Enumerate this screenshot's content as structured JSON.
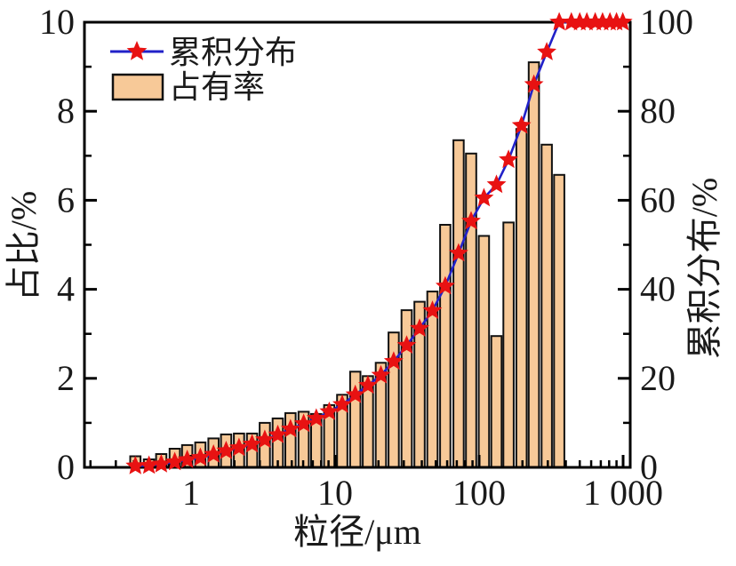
{
  "figure": {
    "background": "#ffffff",
    "legend": {
      "items": [
        {
          "label": "累积分布",
          "type": "line-star"
        },
        {
          "label": "占有率",
          "type": "bar"
        }
      ]
    },
    "axes": {
      "x": {
        "label": "粒径/μm",
        "scale": "log",
        "min": 0.18,
        "max": 1120,
        "major_ticks": [
          1,
          10,
          100,
          1000
        ],
        "tick_labels": [
          "1",
          "10",
          "100",
          "1 000"
        ]
      },
      "y_left": {
        "label": "占比/%",
        "min": 0,
        "max": 10,
        "major_ticks": [
          0,
          2,
          4,
          6,
          8,
          10
        ],
        "tick_labels": [
          "0",
          "2",
          "4",
          "6",
          "8",
          "10"
        ],
        "minor_ticks": [
          1,
          3,
          5,
          7,
          9
        ]
      },
      "y_right": {
        "label": "累积分布/%",
        "min": 0,
        "max": 100,
        "major_ticks": [
          0,
          20,
          40,
          60,
          80,
          100
        ],
        "tick_labels": [
          "0",
          "20",
          "40",
          "60",
          "80",
          "100"
        ],
        "minor_ticks": [
          10,
          30,
          50,
          70,
          90
        ]
      }
    },
    "colors": {
      "bar_fill": "#F7C998",
      "bar_stroke": "#111111",
      "line": "#2121C8",
      "star": "#E81212",
      "axis": "#000000"
    }
  },
  "chart_data": {
    "type": "bar",
    "title": "",
    "xlabel": "粒径/μm",
    "ylabel_left": "占比/%",
    "ylabel_right": "累积分布/%",
    "x_scale": "log",
    "x_range_um": [
      0.18,
      1120
    ],
    "ylim_left": [
      0,
      10
    ],
    "ylim_right": [
      0,
      100
    ],
    "grid": false,
    "legend_position": "top-left-inside",
    "series": [
      {
        "name": "占有率",
        "type": "bar",
        "axis": "left",
        "x_um": [
          0.41,
          0.51,
          0.62,
          0.77,
          0.94,
          1.16,
          1.43,
          1.75,
          2.15,
          2.65,
          3.25,
          4.0,
          4.9,
          6.05,
          7.4,
          9.1,
          11.2,
          13.8,
          16.9,
          20.8,
          25.5,
          31.4,
          38.6,
          47.4,
          58.2,
          72,
          88,
          108,
          132,
          160,
          197,
          240,
          295,
          360
        ],
        "values": [
          0.25,
          0.18,
          0.3,
          0.42,
          0.5,
          0.56,
          0.65,
          0.74,
          0.76,
          0.76,
          1.0,
          1.1,
          1.22,
          1.25,
          1.2,
          1.4,
          1.63,
          2.15,
          2.05,
          2.35,
          3.03,
          3.53,
          3.72,
          3.95,
          5.45,
          7.35,
          7.05,
          5.2,
          2.95,
          5.5,
          7.6,
          9.1,
          7.25,
          6.57
        ]
      },
      {
        "name": "累积分布",
        "type": "line",
        "marker": "star",
        "axis": "right",
        "x_um": [
          0.41,
          0.51,
          0.62,
          0.77,
          0.94,
          1.16,
          1.43,
          1.75,
          2.15,
          2.65,
          3.25,
          4.0,
          4.9,
          6.05,
          7.4,
          9.1,
          11.2,
          13.8,
          16.9,
          20.8,
          25.5,
          31.4,
          38.6,
          47.4,
          58.2,
          72,
          88,
          108,
          132,
          160,
          197,
          240,
          295,
          360,
          437,
          500,
          560,
          640,
          720,
          810,
          900,
          995
        ],
        "values": [
          0.3,
          0.4,
          0.7,
          1.2,
          1.7,
          2.2,
          2.9,
          3.7,
          4.4,
          5.2,
          6.2,
          7.3,
          8.6,
          9.8,
          11.0,
          12.5,
          14.1,
          16.3,
          18.4,
          20.7,
          23.8,
          27.4,
          31.2,
          35.2,
          40.7,
          48.1,
          55.3,
          60.5,
          63.5,
          69.1,
          76.8,
          86.0,
          93.3,
          100,
          100,
          100,
          100,
          100,
          100,
          100,
          100,
          100
        ]
      }
    ]
  }
}
